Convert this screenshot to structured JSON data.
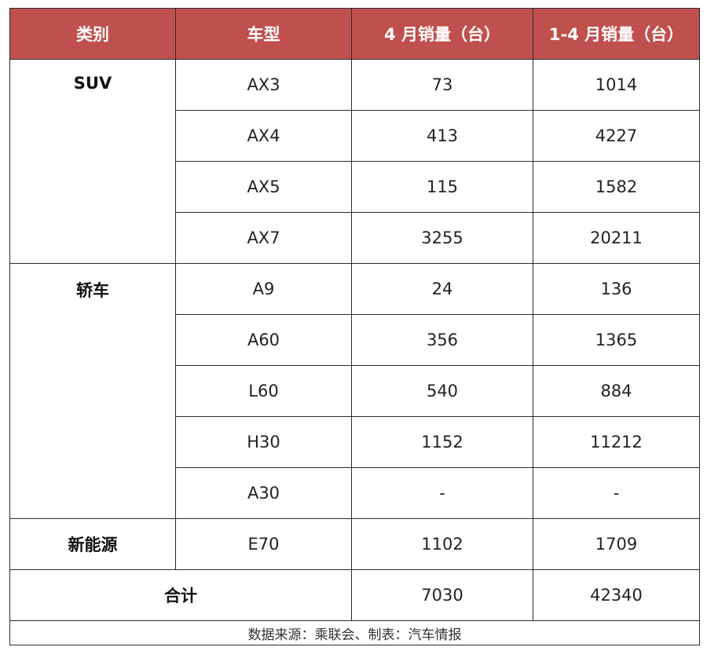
{
  "header": {
    "category": "类别",
    "model": "车型",
    "april": "4 月销量（台）",
    "ytd": "1-4 月销量（台）"
  },
  "groups": [
    {
      "category": "SUV",
      "rows": [
        {
          "model": "AX3",
          "april": "73",
          "ytd": "1014"
        },
        {
          "model": "AX4",
          "april": "413",
          "ytd": "4227"
        },
        {
          "model": "AX5",
          "april": "115",
          "ytd": "1582"
        },
        {
          "model": "AX7",
          "april": "3255",
          "ytd": "20211"
        }
      ]
    },
    {
      "category": "轿车",
      "rows": [
        {
          "model": "A9",
          "april": "24",
          "ytd": "136"
        },
        {
          "model": "A60",
          "april": "356",
          "ytd": "1365"
        },
        {
          "model": "L60",
          "april": "540",
          "ytd": "884"
        },
        {
          "model": "H30",
          "april": "1152",
          "ytd": "11212"
        },
        {
          "model": "A30",
          "april": "-",
          "ytd": "-"
        }
      ]
    },
    {
      "category": "新能源",
      "rows": [
        {
          "model": "E70",
          "april": "1102",
          "ytd": "1709"
        }
      ]
    }
  ],
  "total": {
    "label": "合计",
    "april": "7030",
    "ytd": "42340"
  },
  "footnote": "数据来源：乘联会、制表：汽车情报",
  "colors": {
    "header_bg": "#c0504d",
    "header_text": "#ffffff"
  }
}
